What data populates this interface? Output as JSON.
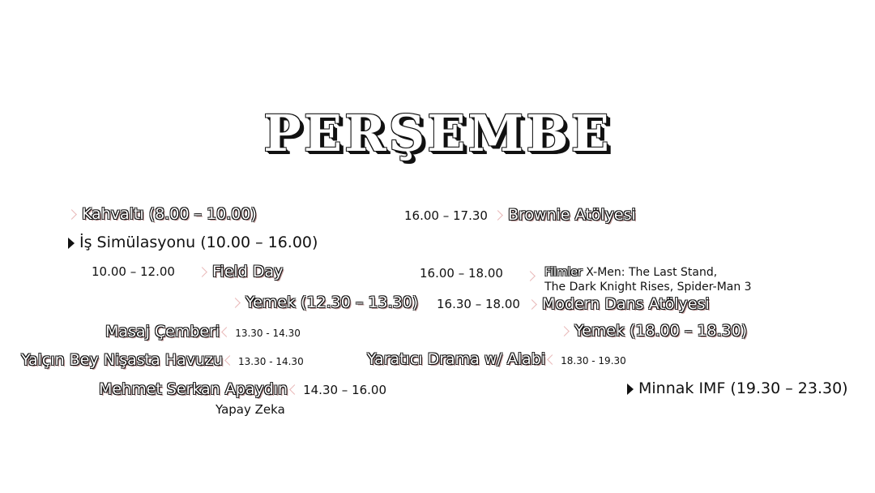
{
  "title": "PERŞEMBE",
  "left": {
    "kahvalti": "Kahvaltı (8.00 – 10.00)",
    "is_simulasyonu": "İş Simülasyonu (10.00 – 16.00)",
    "field_day_time": "10.00 – 12.00",
    "field_day": "Field Day",
    "yemek1": "Yemek (12.30 – 13.30)",
    "masaj": "Masaj Çemberi",
    "masaj_time": "13.30 - 14.30",
    "havuz": "Yalçın Bey Nişasta Havuzu",
    "havuz_time": "13.30 - 14.30",
    "mehmet": "Mehmet Serkan Apaydın",
    "mehmet_time": "14.30 – 16.00",
    "mehmet_sub": "Yapay Zeka"
  },
  "right": {
    "brownie_time": "16.00 – 17.30",
    "brownie": "Brownie Atölyesi",
    "filmler_time": "16.00 – 18.00",
    "filmler_tag": "Filmler",
    "filmler_line1": "X-Men: The Last Stand,",
    "filmler_line2": "The Dark Knight Rises, Spider-Man 3",
    "dans_time": "16.30 – 18.00",
    "dans": "Modern Dans Atölyesi",
    "yemek2": "Yemek (18.00 – 18.30)",
    "drama": "Yaratıcı Drama w/ Alabi",
    "drama_time": "18.30 - 19.30",
    "minnak": "Minnak IMF (19.30 – 23.30)"
  }
}
